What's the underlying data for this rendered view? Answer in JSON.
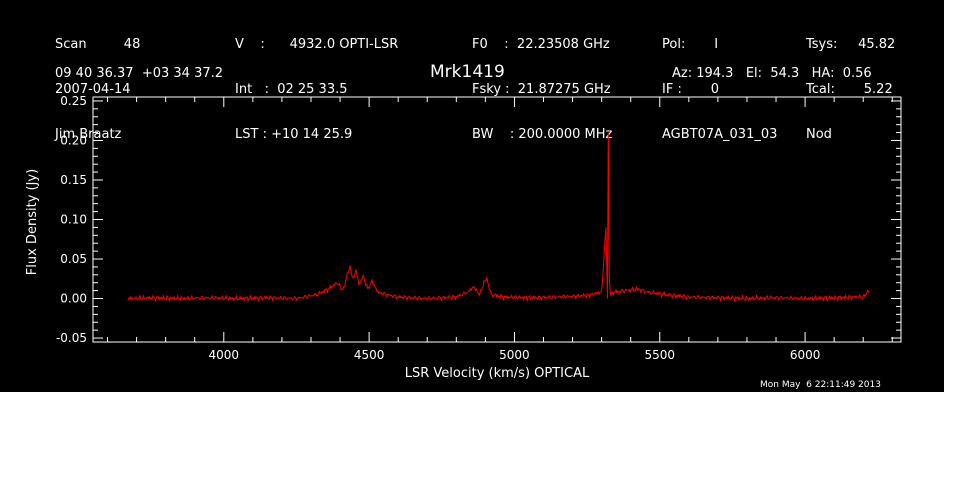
{
  "header": {
    "col1": [
      "Scan         48",
      "2007-04-14",
      "Jim Braatz"
    ],
    "col2": [
      "V    :      4932.0 OPTI-LSR",
      "Int   :  02 25 33.5",
      "LST : +10 14 25.9"
    ],
    "col3": [
      "F0    :  22.23508 GHz",
      "Fsky :  21.87275 GHz",
      "BW    : 200.0000 MHz"
    ],
    "col4": [
      "Pol:       I",
      "IF :       0",
      "AGBT07A_031_03"
    ],
    "col5": [
      "Tsys:     45.82",
      "Tcal:       5.22",
      "Nod"
    ],
    "coords": "09 40 36.37  +03 34 37.2",
    "source": "Mrk1419",
    "azelha": "Az: 194.3   El:  54.3   HA:  0.56"
  },
  "timestamp": "Mon May  6 22:11:49 2013",
  "chart_data": {
    "type": "line",
    "xlabel": "LSR Velocity (km/s) OPTICAL",
    "ylabel": "Flux Density (Jy)",
    "xlim": [
      3550,
      6330
    ],
    "ylim": [
      -0.055,
      0.255
    ],
    "xticks": [
      4000,
      4500,
      5000,
      5500,
      6000
    ],
    "xtick_labels": [
      "4000",
      "4500",
      "5000",
      "5500",
      "6000"
    ],
    "yticks": [
      -0.05,
      0.0,
      0.05,
      0.1,
      0.15,
      0.2,
      0.25
    ],
    "ytick_labels": [
      "-0.05",
      "0.00",
      "0.05",
      "0.10",
      "0.15",
      "0.20",
      "0.25"
    ],
    "line_color": "#ff0000",
    "series": [
      {
        "x": [
          3670,
          3750,
          3850,
          3950,
          4050,
          4150,
          4250,
          4320,
          4360,
          4390,
          4410,
          4425,
          4435,
          4445,
          4455,
          4465,
          4480,
          4495,
          4510,
          4530,
          4560,
          4600,
          4700,
          4800,
          4840,
          4860,
          4880,
          4895,
          4905,
          4920,
          4960,
          5050,
          5150,
          5250,
          5300,
          5315,
          5320,
          5323,
          5326,
          5330,
          5340,
          5380,
          5420,
          5460,
          5500,
          5540,
          5600,
          5700,
          5800,
          5900,
          6000,
          6100,
          6200,
          6220
        ],
        "y": [
          0.0,
          0.001,
          0.0,
          0.001,
          0.0,
          0.001,
          0.0,
          0.005,
          0.012,
          0.02,
          0.01,
          0.03,
          0.04,
          0.025,
          0.035,
          0.018,
          0.028,
          0.012,
          0.022,
          0.008,
          0.005,
          0.002,
          0.0,
          0.002,
          0.008,
          0.015,
          0.005,
          0.02,
          0.025,
          0.005,
          0.002,
          0.001,
          0.002,
          0.004,
          0.008,
          0.09,
          0.0,
          0.21,
          0.03,
          0.005,
          0.008,
          0.01,
          0.012,
          0.008,
          0.006,
          0.004,
          0.002,
          0.001,
          0.0,
          0.001,
          0.0,
          0.001,
          0.002,
          0.01
        ]
      }
    ]
  }
}
